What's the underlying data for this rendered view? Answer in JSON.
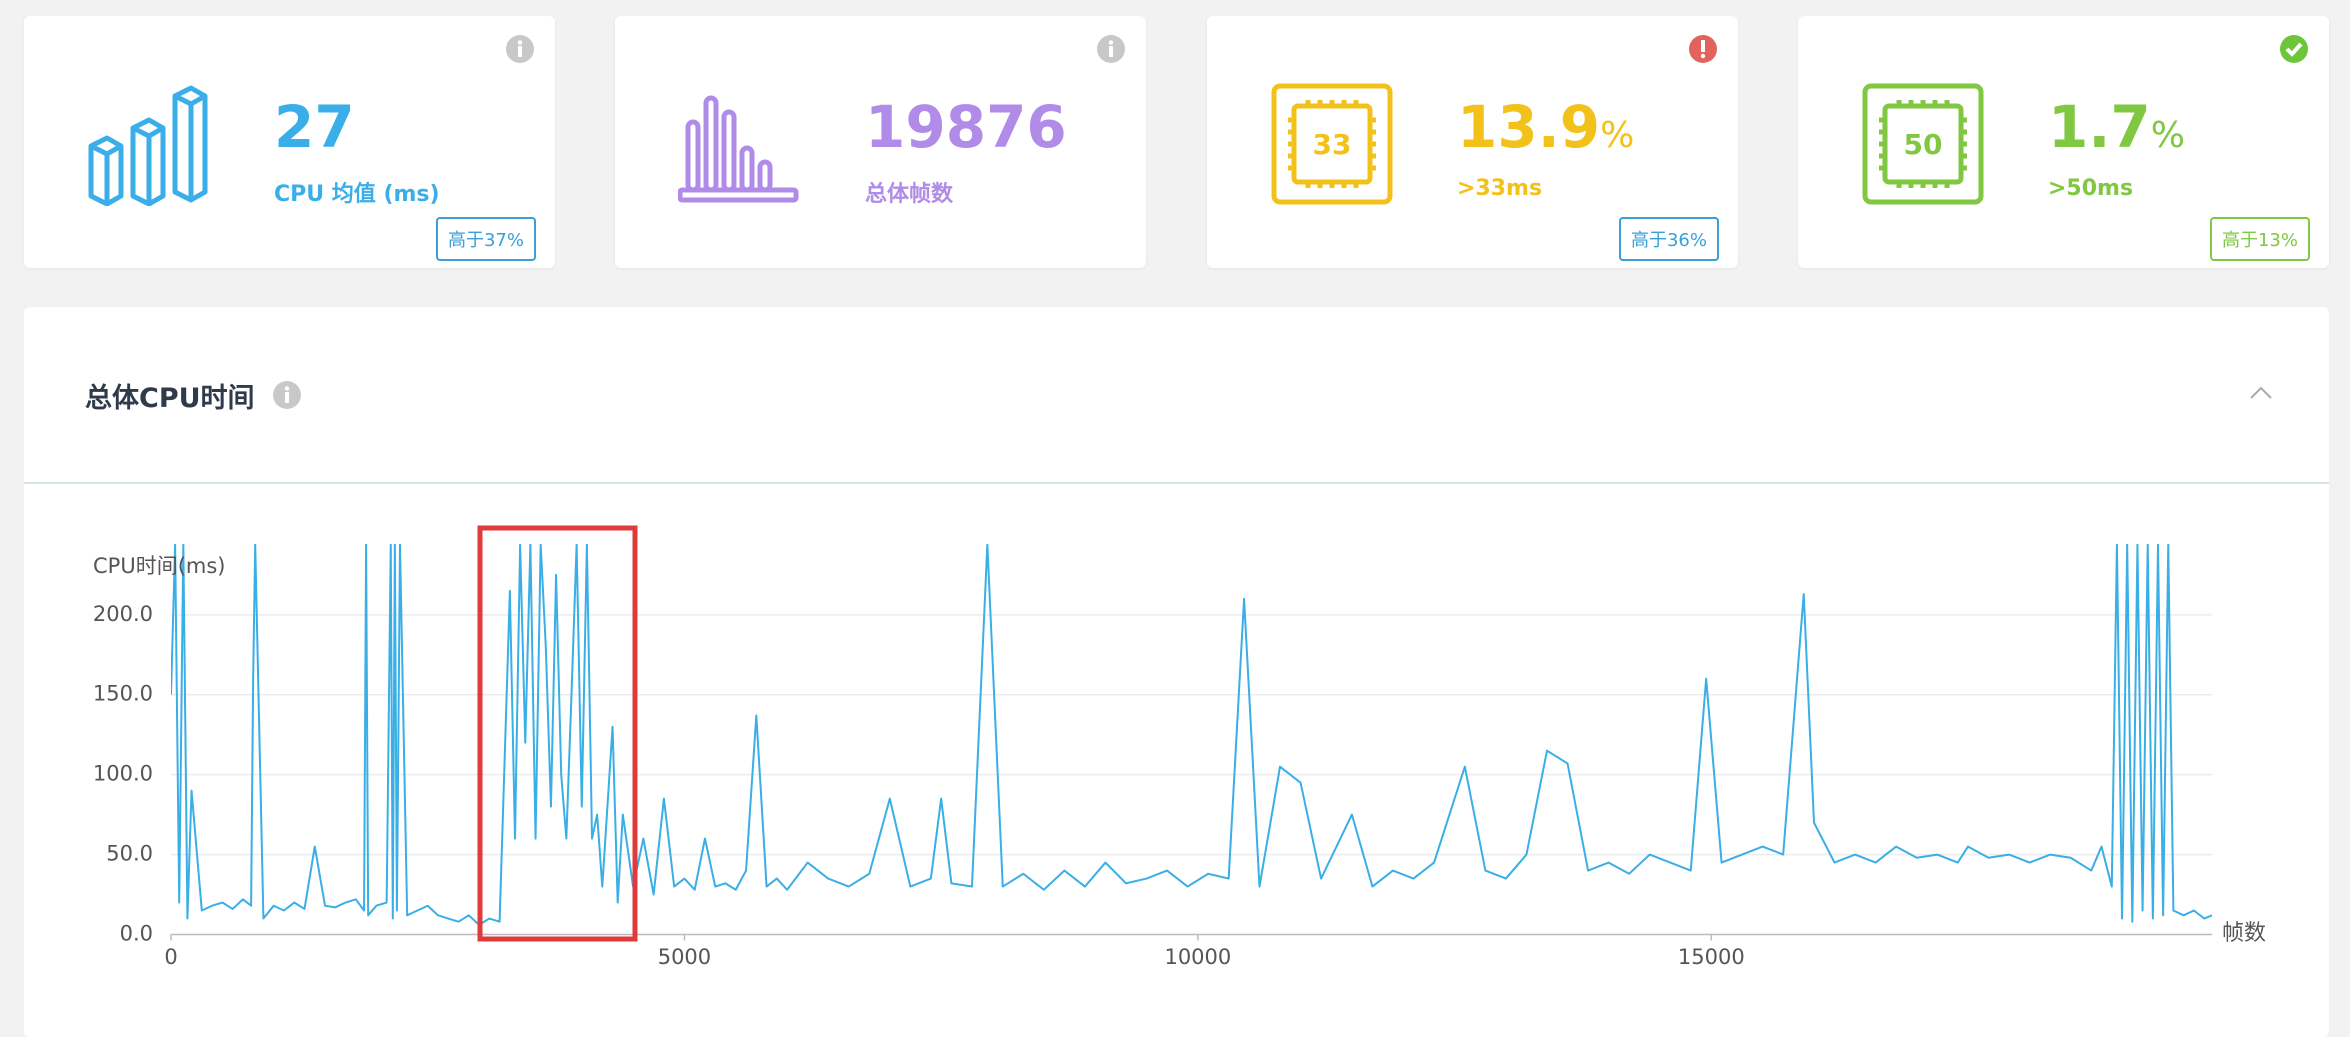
{
  "cards": [
    {
      "value": 27,
      "label": "CPU 均值 (ms)",
      "badge": "高于37%",
      "color": "#3aaee8"
    },
    {
      "value": 19876,
      "label": "总体帧数",
      "color": "#b18be8"
    },
    {
      "value": 13.9,
      "unit": "%",
      "label": ">33ms",
      "badge": "高于36%",
      "icon_text": "33",
      "color": "#f2c21a"
    },
    {
      "value": 1.7,
      "unit": "%",
      "label": ">50ms",
      "badge": "高于13%",
      "icon_text": "50",
      "color": "#80c841"
    }
  ],
  "panel": {
    "title": "总体CPU时间"
  },
  "chart_data": {
    "type": "line",
    "y_label": "CPU时间(ms)",
    "x_label": "帧数",
    "xlim": [
      0,
      19876
    ],
    "ylim": [
      0,
      244
    ],
    "xticks": [
      0,
      5000,
      10000,
      15000
    ],
    "yticks": [
      {
        "value": 0,
        "label": "0.0"
      },
      {
        "value": 50,
        "label": "50.0"
      },
      {
        "value": 100,
        "label": "100.0"
      },
      {
        "value": 150,
        "label": "150.0"
      },
      {
        "value": 200,
        "label": "200.0"
      }
    ],
    "grid": true,
    "series": [
      {
        "name": "CPU时间",
        "color": "#3aaee6",
        "x": [
          0,
          40,
          80,
          120,
          160,
          200,
          300,
          400,
          500,
          600,
          700,
          780,
          800,
          820,
          900,
          1000,
          1100,
          1200,
          1300,
          1400,
          1500,
          1600,
          1700,
          1800,
          1880,
          1900,
          1920,
          2000,
          2100,
          2140,
          2160,
          2180,
          2200,
          2230,
          2300,
          2400,
          2500,
          2600,
          2700,
          2800,
          2900,
          3000,
          3100,
          3200,
          3300,
          3350,
          3400,
          3450,
          3500,
          3550,
          3600,
          3650,
          3700,
          3750,
          3800,
          3850,
          3900,
          3950,
          4000,
          4050,
          4100,
          4150,
          4200,
          4300,
          4350,
          4400,
          4500,
          4600,
          4700,
          4800,
          4900,
          5000,
          5100,
          5200,
          5300,
          5400,
          5500,
          5600,
          5700,
          5800,
          5900,
          6000,
          6200,
          6400,
          6600,
          6800,
          7000,
          7200,
          7400,
          7500,
          7600,
          7800,
          7950,
          8100,
          8300,
          8500,
          8700,
          8900,
          9100,
          9300,
          9500,
          9700,
          9900,
          10100,
          10300,
          10450,
          10600,
          10800,
          11000,
          11200,
          11500,
          11700,
          11900,
          12100,
          12300,
          12600,
          12800,
          13000,
          13200,
          13400,
          13600,
          13800,
          14000,
          14200,
          14400,
          14600,
          14800,
          14950,
          15100,
          15300,
          15500,
          15700,
          15900,
          16000,
          16200,
          16400,
          16600,
          16800,
          17000,
          17200,
          17400,
          17500,
          17700,
          17900,
          18100,
          18300,
          18500,
          18700,
          18800,
          18900,
          18950,
          19000,
          19050,
          19100,
          19150,
          19200,
          19250,
          19300,
          19350,
          19400,
          19450,
          19500,
          19600,
          19700,
          19800,
          19876
        ],
        "values": [
          150,
          244,
          20,
          244,
          10,
          90,
          15,
          18,
          20,
          16,
          22,
          18,
          160,
          244,
          10,
          18,
          15,
          20,
          16,
          55,
          18,
          17,
          20,
          22,
          15,
          244,
          12,
          18,
          20,
          244,
          10,
          244,
          15,
          244,
          12,
          15,
          18,
          12,
          10,
          8,
          12,
          6,
          10,
          8,
          215,
          60,
          244,
          120,
          244,
          60,
          244,
          180,
          80,
          225,
          100,
          60,
          150,
          244,
          80,
          244,
          60,
          75,
          30,
          130,
          20,
          75,
          30,
          60,
          25,
          85,
          30,
          35,
          28,
          60,
          30,
          32,
          28,
          40,
          137,
          30,
          35,
          28,
          45,
          35,
          30,
          38,
          85,
          30,
          35,
          85,
          32,
          30,
          244,
          30,
          38,
          28,
          40,
          30,
          45,
          32,
          35,
          40,
          30,
          38,
          35,
          210,
          30,
          105,
          95,
          35,
          75,
          30,
          40,
          35,
          45,
          105,
          40,
          35,
          50,
          115,
          107,
          40,
          45,
          38,
          50,
          45,
          40,
          160,
          45,
          50,
          55,
          50,
          213,
          70,
          45,
          50,
          45,
          55,
          48,
          50,
          45,
          55,
          48,
          50,
          45,
          50,
          48,
          40,
          55,
          30,
          244,
          10,
          244,
          8,
          244,
          15,
          244,
          10,
          244,
          12,
          244,
          15,
          12,
          15,
          10,
          12
        ]
      }
    ]
  }
}
